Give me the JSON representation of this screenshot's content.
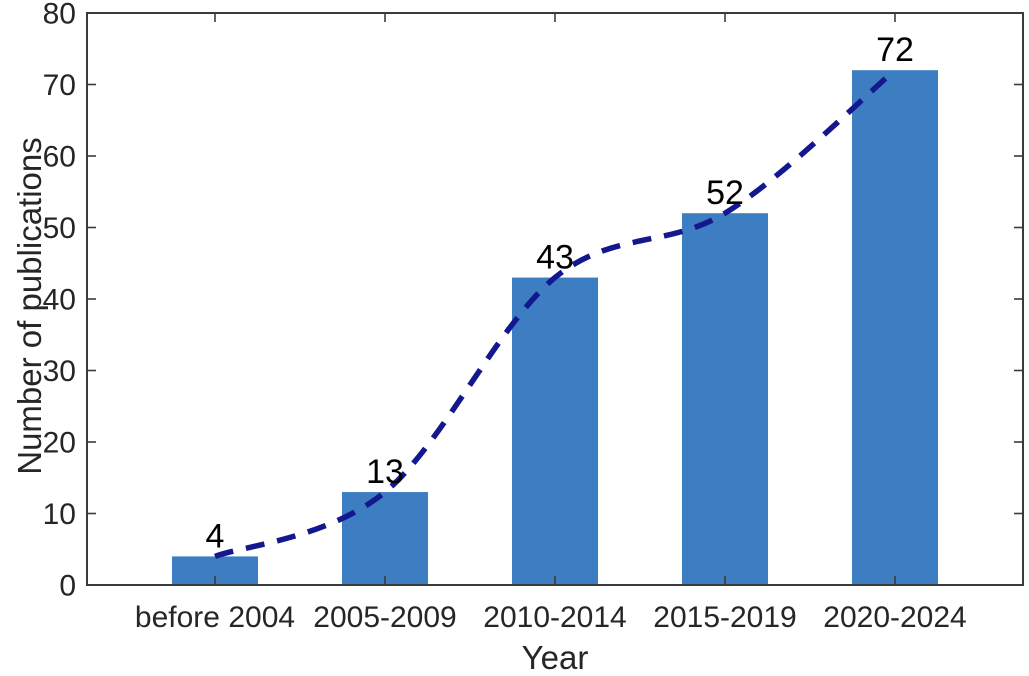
{
  "chart_data": {
    "type": "bar",
    "title": "",
    "xlabel": "Year",
    "ylabel": "Number of publications",
    "categories": [
      "before 2004",
      "2005-2009",
      "2010-2014",
      "2015-2019",
      "2020-2024"
    ],
    "values": [
      4,
      13,
      43,
      52,
      72
    ],
    "value_labels": [
      "4",
      "13",
      "43",
      "52",
      "72"
    ],
    "ylim": [
      0,
      80
    ],
    "yticks": [
      0,
      10,
      20,
      30,
      40,
      50,
      60,
      70,
      80
    ],
    "grid": false,
    "legend_position": "none",
    "bar_color": "#3d7ec3",
    "axis_color": "#3a3a3a",
    "tick_label_color": "#262626",
    "trend_line": {
      "shape": "spline-through-bar-tops",
      "style": "dashed",
      "color": "#14188e",
      "values": [
        4,
        13,
        43,
        52,
        72
      ]
    }
  }
}
